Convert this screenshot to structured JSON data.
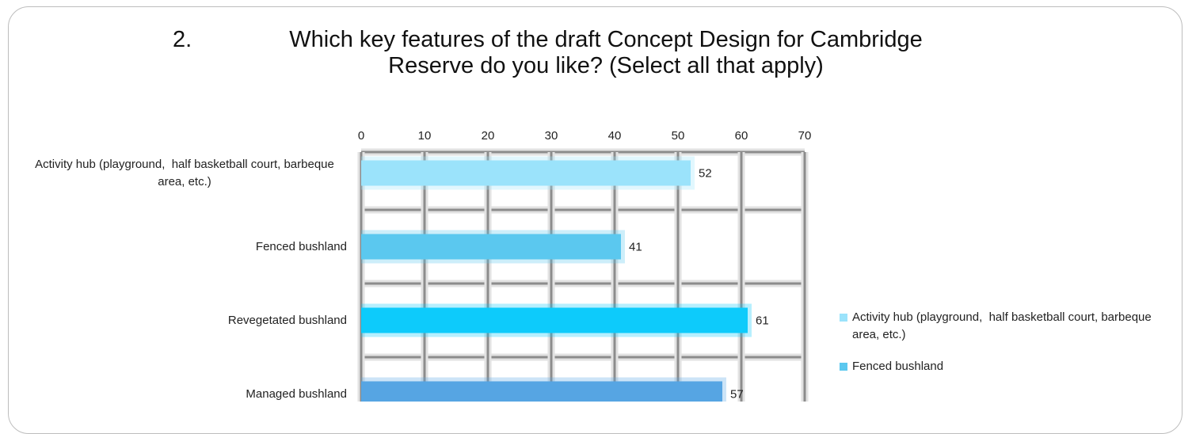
{
  "chart_data": {
    "type": "bar",
    "orientation": "horizontal",
    "title_number": "2.",
    "title": "Which key features of the draft Concept Design for Cambridge Reserve do you like? (Select all that apply)",
    "categories": [
      "Activity hub (playground,  half basketball court, barbeque area, etc.)",
      "Fenced bushland",
      "Revegetated bushland",
      "Managed bushland"
    ],
    "values": [
      52,
      41,
      61,
      57
    ],
    "colors": [
      "#9be3fb",
      "#5bc8ef",
      "#0dcbfb",
      "#56a5e3"
    ],
    "xlim": [
      0,
      70
    ],
    "xticks": [
      0,
      10,
      20,
      30,
      40,
      50,
      60,
      70
    ],
    "grid": true,
    "legend": [
      "Activity hub (playground,  half basketball court, barbeque area, etc.)",
      "Fenced bushland"
    ],
    "legend_position": "right"
  }
}
